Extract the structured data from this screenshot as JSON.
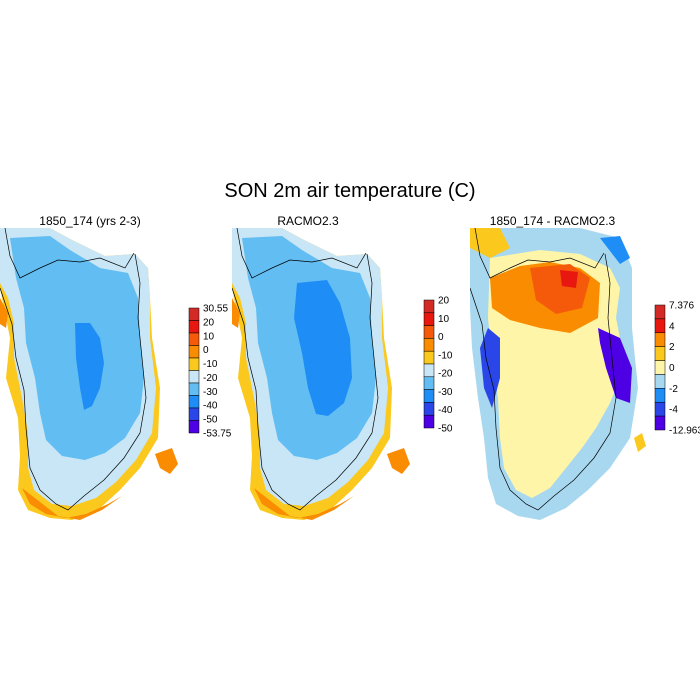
{
  "figure": {
    "title": "SON 2m air temperature (C)"
  },
  "panels": [
    {
      "title": "1850_174 (yrs 2-3)",
      "colorbar": {
        "labels": [
          "30.55",
          "20",
          "10",
          "0",
          "-10",
          "-20",
          "-30",
          "-40",
          "-50",
          "-53.75"
        ],
        "colors": [
          "#d42a26",
          "#e8170f",
          "#f55a0b",
          "#f98c00",
          "#fbc81e",
          "#c8e6f6",
          "#62bef2",
          "#1e8ef6",
          "#2b46e8",
          "#4d00e4"
        ]
      }
    },
    {
      "title": "RACMO2.3",
      "colorbar": {
        "labels": [
          "20",
          "10",
          "0",
          "-10",
          "-20",
          "-30",
          "-40",
          "-50"
        ],
        "colors": [
          "#d42a26",
          "#e8170f",
          "#f55a0b",
          "#f98c00",
          "#fbc81e",
          "#c8e6f6",
          "#62bef2",
          "#1e8ef6",
          "#2b46e8",
          "#4d00e4"
        ]
      }
    },
    {
      "title": "1850_174 - RACMO2.3",
      "colorbar": {
        "labels": [
          "7.376",
          "4",
          "2",
          "0",
          "-2",
          "-4",
          "-12.963"
        ],
        "colors": [
          "#d42a26",
          "#e8170f",
          "#f98c00",
          "#fbc81e",
          "#fff5a8",
          "#a8d8f0",
          "#1e8ef6",
          "#2b46e8",
          "#4d00e4"
        ]
      }
    }
  ]
}
